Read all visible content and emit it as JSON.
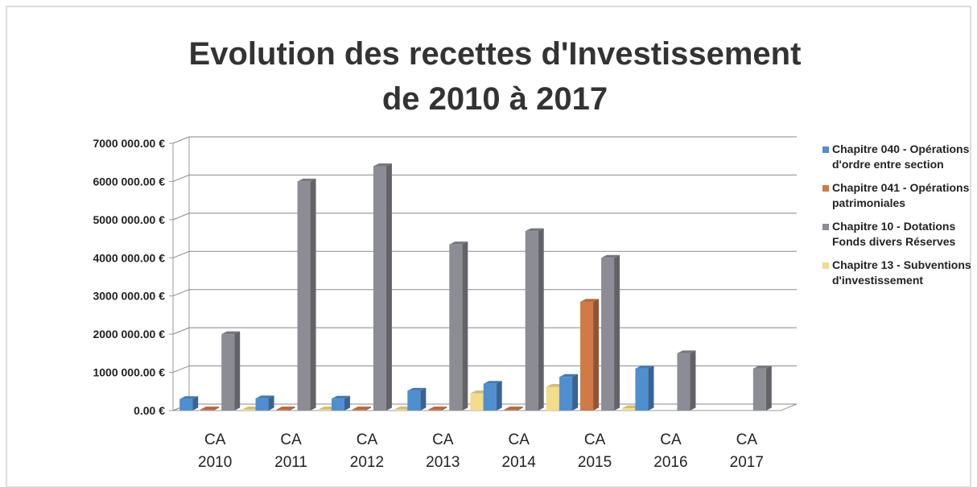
{
  "chart_data": {
    "type": "bar3d",
    "title": [
      "Evolution des recettes d'Investissement",
      "de 2010 à 2017"
    ],
    "categories": [
      "CA 2010",
      "CA 2011",
      "CA 2012",
      "CA 2013",
      "CA 2014",
      "CA 2015",
      "CA 2016",
      "CA 2017"
    ],
    "series": [
      {
        "name": "Chapitre 040 - Opérations d'ordre entre section",
        "color": "#4f8fd0",
        "values": [
          300000,
          320000,
          310000,
          520000,
          700000,
          880000,
          1100000,
          null
        ]
      },
      {
        "name": "Chapitre 041 - Opérations patrimoniales",
        "color": "#d07a48",
        "values": [
          30000,
          30000,
          30000,
          30000,
          30000,
          2850000,
          null,
          null
        ]
      },
      {
        "name": "Chapitre 10 - Dotations Fonds divers Réserves",
        "color": "#8c8c94",
        "values": [
          2000000,
          6000000,
          6400000,
          4350000,
          4700000,
          4000000,
          1500000,
          1100000
        ]
      },
      {
        "name": "Chapitre 13 - Subventions d'investissement",
        "color": "#f3dc8a",
        "values": [
          30000,
          30000,
          30000,
          450000,
          620000,
          60000,
          null,
          null
        ]
      }
    ],
    "ylim": [
      0,
      7000000
    ],
    "yticks": [
      {
        "value": 0,
        "label": "0.00 €"
      },
      {
        "value": 1000000,
        "label": "1000 000.00 €"
      },
      {
        "value": 2000000,
        "label": "2000 000.00 €"
      },
      {
        "value": 3000000,
        "label": "3000 000.00 €"
      },
      {
        "value": 4000000,
        "label": "4000 000.00 €"
      },
      {
        "value": 5000000,
        "label": "5000 000.00 €"
      },
      {
        "value": 6000000,
        "label": "6000 000.00 €"
      },
      {
        "value": 7000000,
        "label": "7000 000.00 €"
      }
    ],
    "grid": true
  }
}
